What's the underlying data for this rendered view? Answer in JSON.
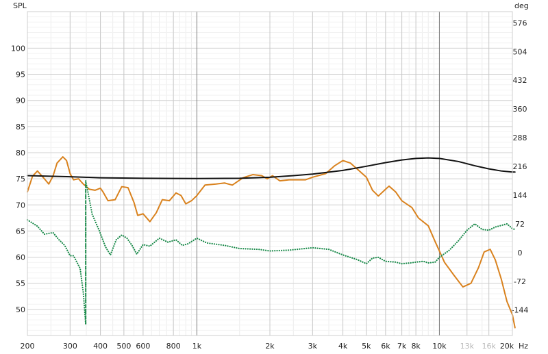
{
  "chart_data": {
    "type": "line",
    "title": "",
    "xlabel": "Hz",
    "ylabel": "SPL",
    "y2label": "deg",
    "xscale": "log",
    "xlim": [
      200,
      20000
    ],
    "ylim": [
      45,
      107
    ],
    "y2lim": [
      -208,
      604
    ],
    "grid": true,
    "x_ticks": [
      {
        "value": 200,
        "label": "200",
        "style": "dark"
      },
      {
        "value": 300,
        "label": "300",
        "style": "dark"
      },
      {
        "value": 400,
        "label": "400",
        "style": "dark"
      },
      {
        "value": 500,
        "label": "500",
        "style": "dark"
      },
      {
        "value": 600,
        "label": "600",
        "style": "dark"
      },
      {
        "value": 800,
        "label": "800",
        "style": "dark"
      },
      {
        "value": 1000,
        "label": "1k",
        "style": "dark"
      },
      {
        "value": 2000,
        "label": "2k",
        "style": "dark"
      },
      {
        "value": 3000,
        "label": "3k",
        "style": "dark"
      },
      {
        "value": 4000,
        "label": "4k",
        "style": "dark"
      },
      {
        "value": 5000,
        "label": "5k",
        "style": "dark"
      },
      {
        "value": 6000,
        "label": "6k",
        "style": "dark"
      },
      {
        "value": 7000,
        "label": "7k",
        "style": "dark"
      },
      {
        "value": 8000,
        "label": "8k",
        "style": "dark"
      },
      {
        "value": 10000,
        "label": "10k",
        "style": "dark"
      },
      {
        "value": 13000,
        "label": "13k",
        "style": "light"
      },
      {
        "value": 16000,
        "label": "16k",
        "style": "light"
      },
      {
        "value": 20000,
        "label": "20k",
        "style": "dark"
      }
    ],
    "y_ticks": [
      50,
      55,
      60,
      65,
      70,
      75,
      80,
      85,
      90,
      95,
      100
    ],
    "y2_ticks": [
      -144,
      -72,
      0,
      72,
      144,
      216,
      288,
      360,
      432,
      504,
      576
    ],
    "series": [
      {
        "axis": "left",
        "color": "#d9821e",
        "style": "solid",
        "points": [
          [
            200,
            72.5
          ],
          [
            210,
            75.5
          ],
          [
            220,
            76.5
          ],
          [
            235,
            75.0
          ],
          [
            245,
            74.0
          ],
          [
            255,
            75.5
          ],
          [
            265,
            78.0
          ],
          [
            280,
            79.2
          ],
          [
            290,
            78.5
          ],
          [
            300,
            76.0
          ],
          [
            310,
            74.8
          ],
          [
            325,
            75.0
          ],
          [
            340,
            74.0
          ],
          [
            360,
            73.0
          ],
          [
            380,
            72.8
          ],
          [
            400,
            73.2
          ],
          [
            410,
            72.5
          ],
          [
            430,
            70.8
          ],
          [
            460,
            71.0
          ],
          [
            490,
            73.5
          ],
          [
            520,
            73.3
          ],
          [
            550,
            70.5
          ],
          [
            570,
            68.0
          ],
          [
            600,
            68.3
          ],
          [
            640,
            66.8
          ],
          [
            680,
            68.5
          ],
          [
            720,
            71.0
          ],
          [
            770,
            70.8
          ],
          [
            820,
            72.3
          ],
          [
            860,
            71.8
          ],
          [
            900,
            70.2
          ],
          [
            950,
            70.8
          ],
          [
            1000,
            71.8
          ],
          [
            1080,
            73.8
          ],
          [
            1200,
            74.0
          ],
          [
            1300,
            74.2
          ],
          [
            1400,
            73.8
          ],
          [
            1550,
            75.2
          ],
          [
            1700,
            75.8
          ],
          [
            1850,
            75.6
          ],
          [
            1950,
            75.0
          ],
          [
            2050,
            75.6
          ],
          [
            2200,
            74.6
          ],
          [
            2400,
            74.8
          ],
          [
            2800,
            74.8
          ],
          [
            3000,
            75.3
          ],
          [
            3400,
            76.0
          ],
          [
            3700,
            77.5
          ],
          [
            4000,
            78.5
          ],
          [
            4300,
            78.0
          ],
          [
            4600,
            76.8
          ],
          [
            5000,
            75.3
          ],
          [
            5300,
            72.8
          ],
          [
            5600,
            71.7
          ],
          [
            6000,
            73.0
          ],
          [
            6200,
            73.6
          ],
          [
            6600,
            72.5
          ],
          [
            7000,
            70.8
          ],
          [
            7700,
            69.5
          ],
          [
            8200,
            67.5
          ],
          [
            9000,
            66.0
          ],
          [
            9600,
            63.0
          ],
          [
            10500,
            59.0
          ],
          [
            11500,
            56.5
          ],
          [
            12500,
            54.3
          ],
          [
            13500,
            55.0
          ],
          [
            14500,
            58.0
          ],
          [
            15300,
            61.0
          ],
          [
            16200,
            61.5
          ],
          [
            17000,
            59.5
          ],
          [
            18000,
            55.8
          ],
          [
            19000,
            51.5
          ],
          [
            20000,
            49.0
          ],
          [
            20500,
            46.5
          ]
        ]
      },
      {
        "axis": "left",
        "color": "#111111",
        "style": "solid",
        "points": [
          [
            200,
            75.6
          ],
          [
            300,
            75.4
          ],
          [
            400,
            75.2
          ],
          [
            600,
            75.1
          ],
          [
            1000,
            75.05
          ],
          [
            1500,
            75.1
          ],
          [
            2000,
            75.3
          ],
          [
            2500,
            75.6
          ],
          [
            3000,
            75.9
          ],
          [
            4000,
            76.6
          ],
          [
            5000,
            77.4
          ],
          [
            6000,
            78.1
          ],
          [
            7000,
            78.6
          ],
          [
            8000,
            78.9
          ],
          [
            9000,
            79.0
          ],
          [
            10000,
            78.9
          ],
          [
            12000,
            78.3
          ],
          [
            14000,
            77.5
          ],
          [
            16000,
            76.9
          ],
          [
            18000,
            76.5
          ],
          [
            20000,
            76.3
          ],
          [
            20500,
            76.3
          ]
        ]
      },
      {
        "axis": "right",
        "color": "#1a8a4a",
        "style": "dotted",
        "points": [
          [
            200,
            82
          ],
          [
            220,
            66
          ],
          [
            235,
            46
          ],
          [
            255,
            50
          ],
          [
            270,
            32
          ],
          [
            285,
            18
          ],
          [
            300,
            -8
          ],
          [
            310,
            -8
          ],
          [
            330,
            -40
          ],
          [
            340,
            -100
          ],
          [
            348,
            -180
          ],
          [
            348,
            180
          ],
          [
            370,
            96
          ],
          [
            395,
            56
          ],
          [
            420,
            14
          ],
          [
            440,
            -6
          ],
          [
            465,
            32
          ],
          [
            490,
            44
          ],
          [
            515,
            36
          ],
          [
            540,
            18
          ],
          [
            565,
            -4
          ],
          [
            600,
            20
          ],
          [
            640,
            16
          ],
          [
            700,
            36
          ],
          [
            760,
            26
          ],
          [
            820,
            32
          ],
          [
            870,
            18
          ],
          [
            920,
            22
          ],
          [
            1000,
            36
          ],
          [
            1100,
            24
          ],
          [
            1300,
            18
          ],
          [
            1500,
            10
          ],
          [
            1800,
            8
          ],
          [
            2000,
            4
          ],
          [
            2400,
            6
          ],
          [
            3000,
            12
          ],
          [
            3500,
            8
          ],
          [
            4000,
            -6
          ],
          [
            4600,
            -18
          ],
          [
            5000,
            -28
          ],
          [
            5300,
            -14
          ],
          [
            5600,
            -12
          ],
          [
            6000,
            -22
          ],
          [
            6600,
            -24
          ],
          [
            7000,
            -28
          ],
          [
            7600,
            -26
          ],
          [
            8000,
            -24
          ],
          [
            8600,
            -22
          ],
          [
            9000,
            -26
          ],
          [
            9600,
            -24
          ],
          [
            10000,
            -12
          ],
          [
            11000,
            6
          ],
          [
            12000,
            30
          ],
          [
            13000,
            56
          ],
          [
            14000,
            72
          ],
          [
            15000,
            58
          ],
          [
            16000,
            56
          ],
          [
            17000,
            64
          ],
          [
            18000,
            68
          ],
          [
            19000,
            72
          ],
          [
            20000,
            60
          ],
          [
            20500,
            58
          ]
        ]
      },
      {
        "axis": "right",
        "color": "#1a8a4a",
        "style": "dashed",
        "points": [
          [
            348,
            -180
          ],
          [
            348,
            180
          ]
        ]
      }
    ]
  }
}
